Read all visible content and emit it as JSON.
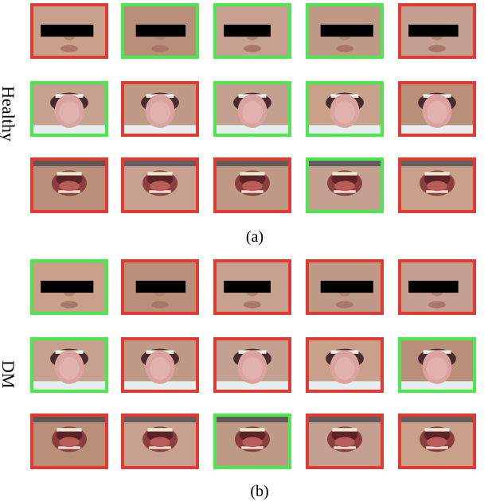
{
  "colors": {
    "selected_border": "#4de84f",
    "rejected_border": "#e03a32",
    "redaction_bar": "#000000"
  },
  "panels": [
    {
      "label": "Healthy",
      "caption": "(a)",
      "rows": [
        {
          "kind": "face",
          "borders": [
            "red",
            "green",
            "green",
            "green",
            "red"
          ]
        },
        {
          "kind": "tongue",
          "borders": [
            "green",
            "red",
            "green",
            "green",
            "red"
          ]
        },
        {
          "kind": "mouth",
          "borders": [
            "red",
            "red",
            "red",
            "green",
            "red"
          ]
        }
      ]
    },
    {
      "label": "DM",
      "caption": "(b)",
      "rows": [
        {
          "kind": "face",
          "borders": [
            "green",
            "red",
            "red",
            "red",
            "red"
          ]
        },
        {
          "kind": "tongue",
          "borders": [
            "green",
            "red",
            "red",
            "red",
            "green"
          ]
        },
        {
          "kind": "mouth",
          "borders": [
            "red",
            "red",
            "green",
            "red",
            "red"
          ]
        }
      ]
    }
  ]
}
